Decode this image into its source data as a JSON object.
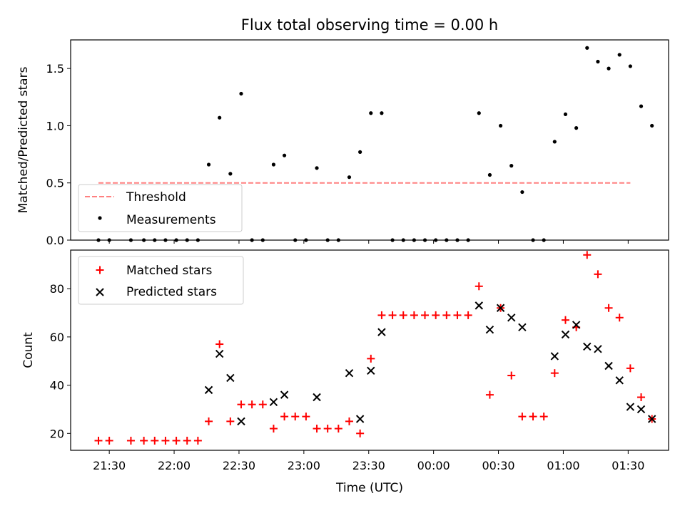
{
  "title": "Flux total observing time = 0.00 h",
  "colors": {
    "matched": "#ff0000",
    "predicted": "#000000",
    "threshold": "#ff8080",
    "measurement": "#000000"
  },
  "chart_data": [
    {
      "type": "scatter",
      "ylabel": "Matched/Predicted stars",
      "ylim": [
        0,
        1.75
      ],
      "yticks": [
        {
          "value": 0.0,
          "label": "0.0"
        },
        {
          "value": 0.5,
          "label": "0.5"
        },
        {
          "value": 1.0,
          "label": "1.0"
        },
        {
          "value": 1.5,
          "label": "1.5"
        }
      ],
      "legend": {
        "position": "lower-left"
      },
      "threshold": {
        "name": "Threshold",
        "value": 0.5,
        "x_range": [
          "21:25",
          "01:31"
        ],
        "style": "dashed"
      },
      "series": [
        {
          "name": "Measurements",
          "points": [
            [
              "21:25",
              0
            ],
            [
              "21:30",
              0
            ],
            [
              "21:40",
              0
            ],
            [
              "21:46",
              0
            ],
            [
              "21:51",
              0
            ],
            [
              "21:56",
              0
            ],
            [
              "22:01",
              0
            ],
            [
              "22:06",
              0
            ],
            [
              "22:11",
              0
            ],
            [
              "22:16",
              0.66
            ],
            [
              "22:21",
              1.07
            ],
            [
              "22:26",
              0.58
            ],
            [
              "22:31",
              1.28
            ],
            [
              "22:36",
              0
            ],
            [
              "22:41",
              0
            ],
            [
              "22:46",
              0.66
            ],
            [
              "22:51",
              0.74
            ],
            [
              "22:56",
              0
            ],
            [
              "23:01",
              0
            ],
            [
              "23:06",
              0.63
            ],
            [
              "23:11",
              0
            ],
            [
              "23:16",
              0
            ],
            [
              "23:21",
              0.55
            ],
            [
              "23:26",
              0.77
            ],
            [
              "23:31",
              1.11
            ],
            [
              "23:36",
              1.11
            ],
            [
              "23:41",
              0
            ],
            [
              "23:46",
              0
            ],
            [
              "23:51",
              0
            ],
            [
              "23:56",
              0
            ],
            [
              "00:01",
              0
            ],
            [
              "00:06",
              0
            ],
            [
              "00:11",
              0
            ],
            [
              "00:16",
              0
            ],
            [
              "00:21",
              1.11
            ],
            [
              "00:26",
              0.57
            ],
            [
              "00:31",
              1.0
            ],
            [
              "00:36",
              0.65
            ],
            [
              "00:41",
              0.42
            ],
            [
              "00:46",
              0
            ],
            [
              "00:51",
              0
            ],
            [
              "00:56",
              0.86
            ],
            [
              "01:01",
              1.1
            ],
            [
              "01:06",
              0.98
            ],
            [
              "01:11",
              1.68
            ],
            [
              "01:16",
              1.56
            ],
            [
              "01:21",
              1.5
            ],
            [
              "01:26",
              1.62
            ],
            [
              "01:31",
              1.52
            ],
            [
              "01:36",
              1.17
            ],
            [
              "01:41",
              1.0
            ]
          ]
        }
      ]
    },
    {
      "type": "scatter",
      "xlabel": "Time (UTC)",
      "ylabel": "Count",
      "ylim": [
        13,
        96
      ],
      "yticks": [
        {
          "value": 20,
          "label": "20"
        },
        {
          "value": 40,
          "label": "40"
        },
        {
          "value": 60,
          "label": "60"
        },
        {
          "value": 80,
          "label": "80"
        }
      ],
      "xticks": [
        {
          "value": "21:30",
          "label": "21:30"
        },
        {
          "value": "22:00",
          "label": "22:00"
        },
        {
          "value": "22:30",
          "label": "22:30"
        },
        {
          "value": "23:00",
          "label": "23:00"
        },
        {
          "value": "23:30",
          "label": "23:30"
        },
        {
          "value": "00:00",
          "label": "00:00"
        },
        {
          "value": "00:30",
          "label": "00:30"
        },
        {
          "value": "01:00",
          "label": "01:00"
        },
        {
          "value": "01:30",
          "label": "01:30"
        }
      ],
      "legend": {
        "position": "upper-left"
      },
      "series": [
        {
          "name": "Matched stars",
          "marker": "plus",
          "points": [
            [
              "21:25",
              17
            ],
            [
              "21:30",
              17
            ],
            [
              "21:40",
              17
            ],
            [
              "21:46",
              17
            ],
            [
              "21:51",
              17
            ],
            [
              "21:56",
              17
            ],
            [
              "22:01",
              17
            ],
            [
              "22:06",
              17
            ],
            [
              "22:11",
              17
            ],
            [
              "22:16",
              25
            ],
            [
              "22:21",
              57
            ],
            [
              "22:26",
              25
            ],
            [
              "22:31",
              32
            ],
            [
              "22:36",
              32
            ],
            [
              "22:41",
              32
            ],
            [
              "22:46",
              22
            ],
            [
              "22:51",
              27
            ],
            [
              "22:56",
              27
            ],
            [
              "23:01",
              27
            ],
            [
              "23:06",
              22
            ],
            [
              "23:11",
              22
            ],
            [
              "23:16",
              22
            ],
            [
              "23:21",
              25
            ],
            [
              "23:26",
              20
            ],
            [
              "23:31",
              51
            ],
            [
              "23:36",
              69
            ],
            [
              "23:41",
              69
            ],
            [
              "23:46",
              69
            ],
            [
              "23:51",
              69
            ],
            [
              "23:56",
              69
            ],
            [
              "00:01",
              69
            ],
            [
              "00:06",
              69
            ],
            [
              "00:11",
              69
            ],
            [
              "00:16",
              69
            ],
            [
              "00:21",
              81
            ],
            [
              "00:26",
              36
            ],
            [
              "00:31",
              72
            ],
            [
              "00:36",
              44
            ],
            [
              "00:41",
              27
            ],
            [
              "00:46",
              27
            ],
            [
              "00:51",
              27
            ],
            [
              "00:56",
              45
            ],
            [
              "01:01",
              67
            ],
            [
              "01:06",
              64
            ],
            [
              "01:11",
              94
            ],
            [
              "01:16",
              86
            ],
            [
              "01:21",
              72
            ],
            [
              "01:26",
              68
            ],
            [
              "01:31",
              47
            ],
            [
              "01:36",
              35
            ],
            [
              "01:41",
              26
            ]
          ]
        },
        {
          "name": "Predicted stars",
          "marker": "x",
          "points": [
            [
              "22:16",
              38
            ],
            [
              "22:21",
              53
            ],
            [
              "22:26",
              43
            ],
            [
              "22:31",
              25
            ],
            [
              "22:46",
              33
            ],
            [
              "22:51",
              36
            ],
            [
              "23:06",
              35
            ],
            [
              "23:21",
              45
            ],
            [
              "23:26",
              26
            ],
            [
              "23:31",
              46
            ],
            [
              "23:36",
              62
            ],
            [
              "00:21",
              73
            ],
            [
              "00:26",
              63
            ],
            [
              "00:31",
              72
            ],
            [
              "00:36",
              68
            ],
            [
              "00:41",
              64
            ],
            [
              "00:56",
              52
            ],
            [
              "01:01",
              61
            ],
            [
              "01:06",
              65
            ],
            [
              "01:11",
              56
            ],
            [
              "01:16",
              55
            ],
            [
              "01:21",
              48
            ],
            [
              "01:26",
              42
            ],
            [
              "01:31",
              31
            ],
            [
              "01:36",
              30
            ],
            [
              "01:41",
              26
            ]
          ]
        }
      ]
    }
  ]
}
